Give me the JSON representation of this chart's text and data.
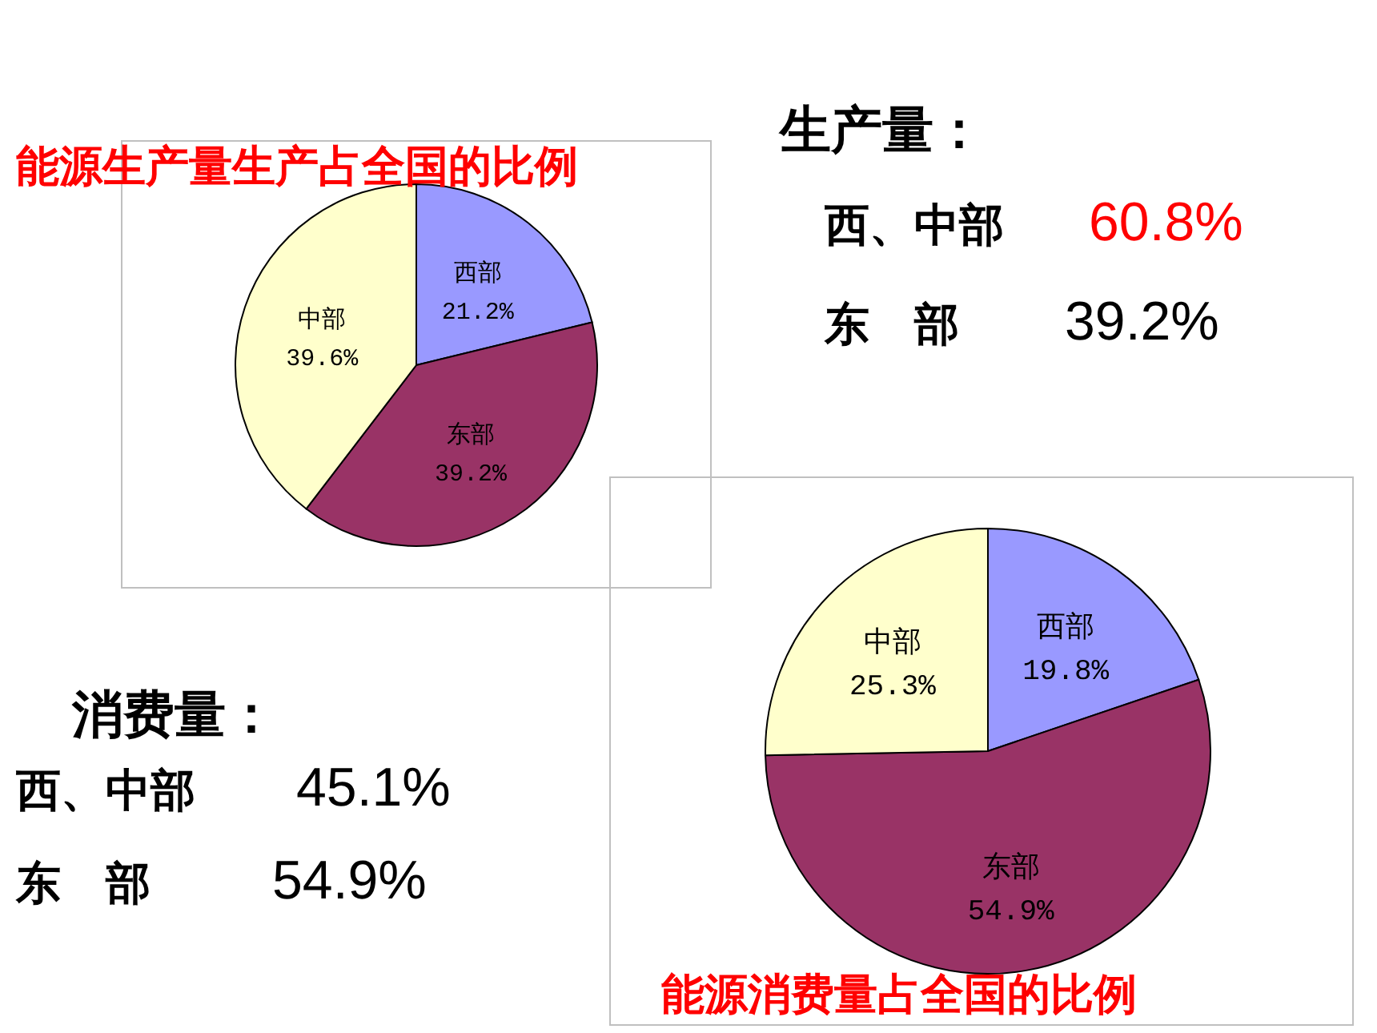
{
  "chart_data": [
    {
      "type": "pie",
      "title": "能源生产量生产占全国的比例",
      "categories": [
        "西部",
        "东部",
        "中部"
      ],
      "values": [
        21.2,
        39.2,
        39.6
      ],
      "colors": [
        "#9999ff",
        "#993366",
        "#ffffcc"
      ],
      "value_labels": [
        "21.2%",
        "39.2%",
        "39.6%"
      ]
    },
    {
      "type": "other",
      "title": "生产量：",
      "annotations": [
        "西、中部",
        "60.8%",
        "东　部",
        "39.2%"
      ]
    },
    {
      "type": "other",
      "title": "消费量：",
      "annotations": [
        "西、中部",
        "45.1%",
        "东　部",
        "54.9%"
      ]
    },
    {
      "type": "pie",
      "title": "能源消费量占全国的比例",
      "categories": [
        "西部",
        "东部",
        "中部"
      ],
      "values": [
        19.8,
        54.9,
        25.3
      ],
      "colors": [
        "#9999ff",
        "#993366",
        "#ffffcc"
      ],
      "value_labels": [
        "19.8%",
        "54.9%",
        "25.3%"
      ]
    }
  ]
}
